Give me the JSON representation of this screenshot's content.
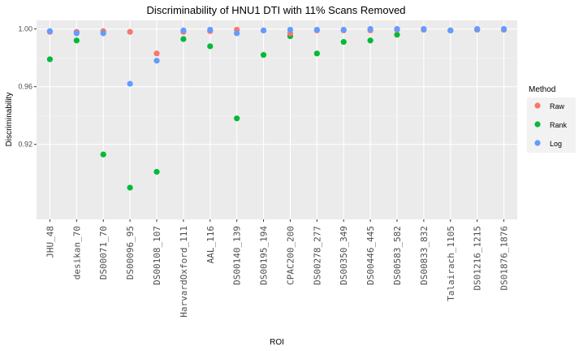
{
  "chart_data": {
    "type": "scatter",
    "title": "Discriminability of HNU1 DTI with 11% Scans Removed",
    "xlabel": "ROI",
    "ylabel": "Discriminability",
    "categories": [
      "JHU_48",
      "desikan_70",
      "DS00071_70",
      "DS00096_95",
      "DS00108_107",
      "HarvardOxford_111",
      "AAL_116",
      "DS00140_139",
      "DS00195_194",
      "CPAC200_200",
      "DS00278_277",
      "DS00350_349",
      "DS00446_445",
      "DS00583_582",
      "DS00833_832",
      "Talairach_1105",
      "DS01216_1215",
      "DS01876_1876"
    ],
    "ylim": [
      0.868,
      1.006
    ],
    "yticks": [
      0.92,
      0.96,
      1.0
    ],
    "ytick_labels": [
      "0.92",
      "0.96",
      "1.00"
    ],
    "grid": true,
    "legend": {
      "title": "Method",
      "position": "right"
    },
    "series": [
      {
        "name": "Raw",
        "color": "#F8766D",
        "values": [
          0.998,
          0.998,
          0.9985,
          0.998,
          0.983,
          0.998,
          0.9985,
          0.9995,
          0.999,
          0.997,
          0.999,
          0.999,
          0.999,
          0.9995,
          0.9995,
          0.999,
          0.9995,
          0.9995
        ]
      },
      {
        "name": "Rank",
        "color": "#00BA38",
        "values": [
          0.979,
          0.992,
          0.913,
          0.89,
          0.901,
          0.993,
          0.988,
          0.938,
          0.982,
          0.995,
          0.983,
          0.991,
          0.992,
          0.996,
          0.9995,
          0.999,
          0.9995,
          0.9995
        ]
      },
      {
        "name": "Log",
        "color": "#619CFF",
        "values": [
          0.9985,
          0.997,
          0.997,
          0.962,
          0.978,
          0.999,
          0.9995,
          0.997,
          0.999,
          0.9995,
          0.9995,
          0.9995,
          1.0,
          1.0,
          1.0,
          0.999,
          1.0,
          1.0
        ]
      }
    ]
  }
}
